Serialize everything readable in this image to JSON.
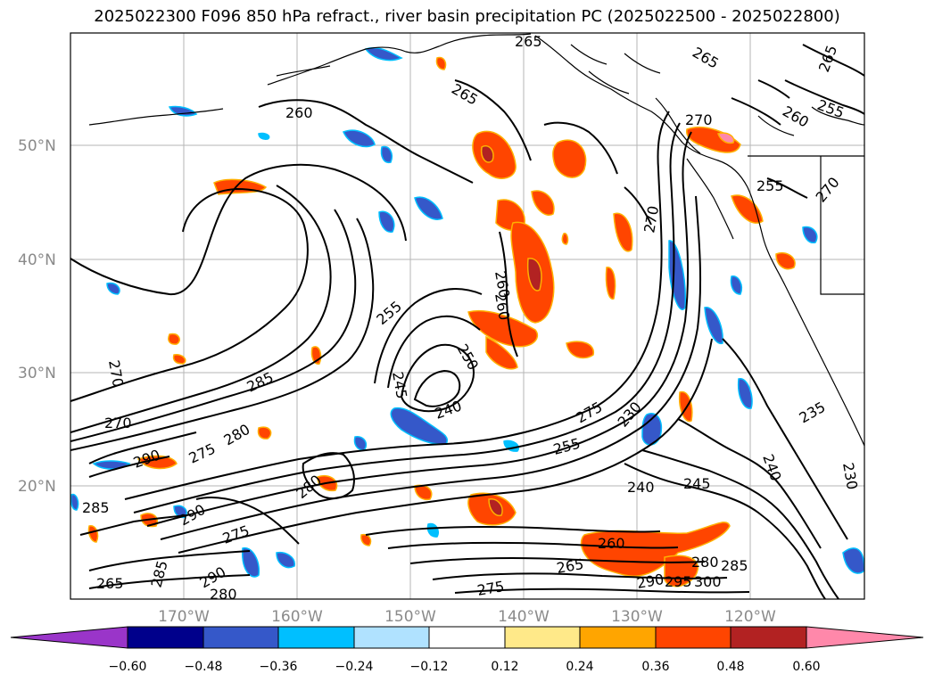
{
  "title": "2025022300 F096 850 hPa refract., river basin precipitation PC (2025022500 - 2025022800)",
  "map": {
    "lat_labels": [
      "50°N",
      "40°N",
      "30°N",
      "20°N"
    ],
    "lon_labels": [
      "170°W",
      "160°W",
      "150°W",
      "140°W",
      "130°W",
      "120°W"
    ],
    "contour_labels": [
      "265",
      "265",
      "265",
      "255",
      "260",
      "265",
      "260",
      "270",
      "270",
      "255",
      "270",
      "255",
      "260",
      "260",
      "250",
      "245",
      "240",
      "275",
      "285",
      "280",
      "270",
      "270",
      "290",
      "275",
      "280",
      "290",
      "275",
      "285",
      "290",
      "265",
      "285",
      "280",
      "230",
      "255",
      "240",
      "245",
      "240",
      "235",
      "230",
      "260",
      "265",
      "280",
      "285",
      "275",
      "290",
      "295",
      "300"
    ]
  },
  "colorbar": {
    "ticks": [
      "−0.60",
      "−0.48",
      "−0.36",
      "−0.24",
      "−0.12",
      "0.12",
      "0.24",
      "0.36",
      "0.48",
      "0.60"
    ],
    "colors": [
      "#9a35c9",
      "#00008b",
      "#3558c9",
      "#00bfff",
      "#b0e2ff",
      "#ffffff",
      "#ffe989",
      "#ffa500",
      "#ff4500",
      "#b22222",
      "#ff88aa"
    ]
  }
}
